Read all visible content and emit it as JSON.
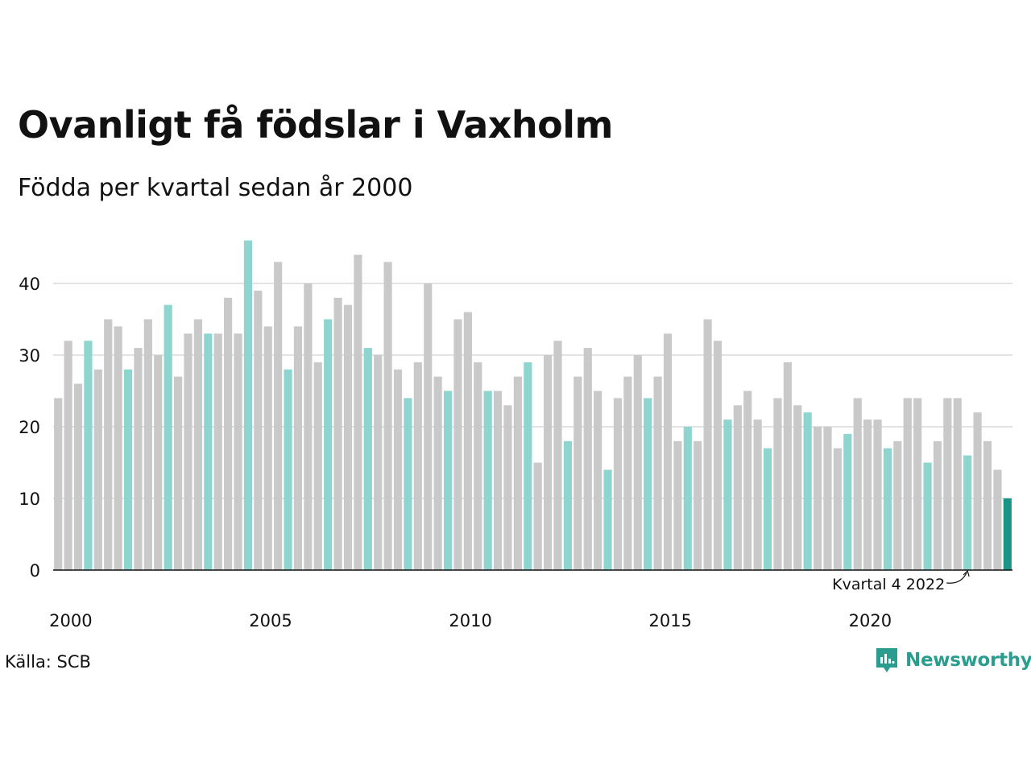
{
  "title": "Ovanligt få födslar i Vaxholm",
  "subtitle": "Födda per kvartal sedan år 2000",
  "source": "Källa: SCB",
  "brand": "Newsworthy",
  "colors": {
    "default": "#c9c9c9",
    "q4": "#8fd5cf",
    "latest": "#1a9484",
    "brand": "#2a9d8f"
  },
  "chart_data": {
    "type": "bar",
    "title": "Ovanligt få födslar i Vaxholm",
    "subtitle": "Födda per kvartal sedan år 2000",
    "xlabel": "",
    "ylabel": "",
    "ylim": [
      0,
      46
    ],
    "yticks": [
      0,
      10,
      20,
      30,
      40
    ],
    "xticks": [
      {
        "label": "2000",
        "index": 0
      },
      {
        "label": "2005",
        "index": 20
      },
      {
        "label": "2010",
        "index": 40
      },
      {
        "label": "2015",
        "index": 60
      },
      {
        "label": "2020",
        "index": 80
      }
    ],
    "grid": true,
    "highlight_quarter": 4,
    "start_year": 2000,
    "values": [
      24,
      32,
      26,
      32,
      28,
      35,
      34,
      28,
      31,
      35,
      30,
      37,
      27,
      33,
      35,
      33,
      33,
      38,
      33,
      46,
      39,
      34,
      43,
      28,
      34,
      40,
      29,
      35,
      38,
      37,
      44,
      31,
      30,
      43,
      28,
      24,
      29,
      40,
      27,
      25,
      35,
      36,
      29,
      25,
      25,
      23,
      27,
      29,
      15,
      30,
      32,
      18,
      27,
      31,
      25,
      14,
      24,
      27,
      30,
      24,
      27,
      33,
      18,
      20,
      18,
      35,
      32,
      21,
      23,
      25,
      21,
      17,
      24,
      29,
      23,
      22,
      20,
      20,
      17,
      19,
      24,
      21,
      21,
      17,
      18,
      24,
      24,
      15,
      18,
      24,
      24,
      16,
      22,
      18,
      14,
      10
    ],
    "annotation": {
      "text": "Kvartal 4 2022",
      "index": 91
    }
  }
}
